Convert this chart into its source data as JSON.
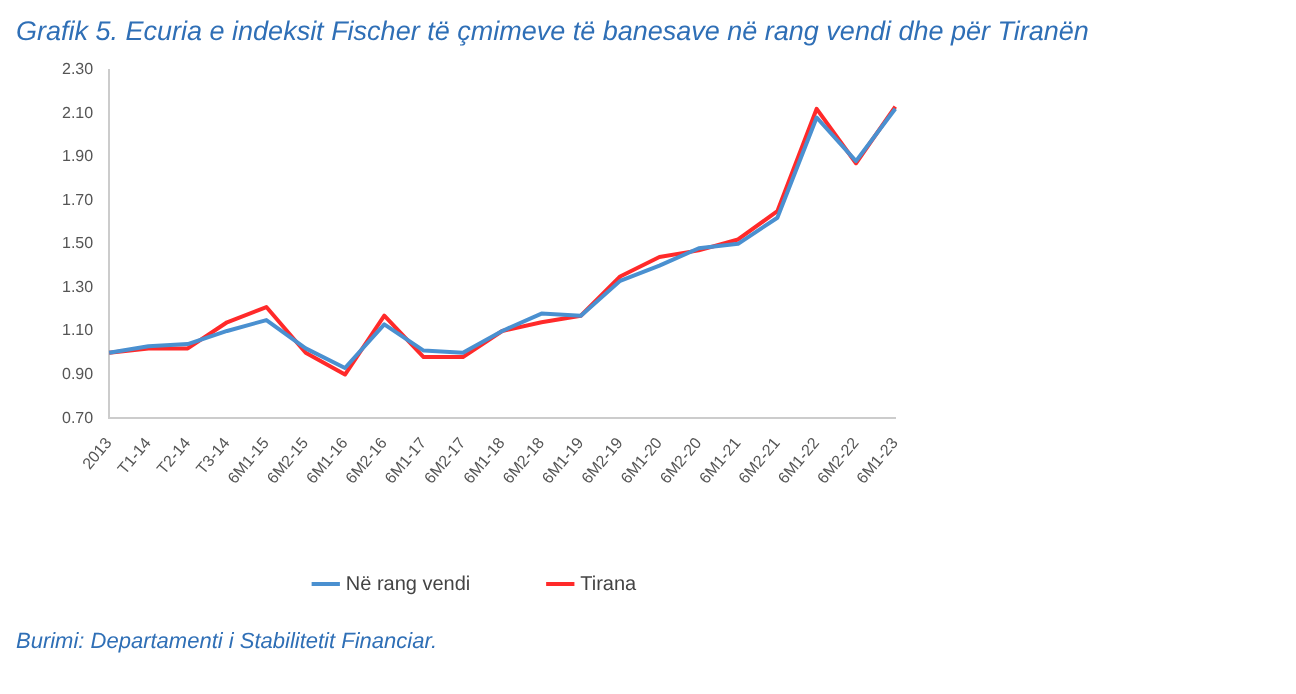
{
  "chart_data": {
    "type": "line",
    "title": "Grafik 5. Ecuria e indeksit Fischer të çmimeve të banesave në rang vendi dhe për Tiranën",
    "categories": [
      "2013",
      "T1-14",
      "T2-14",
      "T3-14",
      "6M1-15",
      "6M2-15",
      "6M1-16",
      "6M2-16",
      "6M1-17",
      "6M2-17",
      "6M1-18",
      "6M2-18",
      "6M1-19",
      "6M2-19",
      "6M1-20",
      "6M2-20",
      "6M1-21",
      "6M2-21",
      "6M1-22",
      "6M2-22",
      "6M1-23"
    ],
    "series": [
      {
        "name": "Në rang vendi",
        "color": "#4a90d0",
        "values": [
          1.0,
          1.03,
          1.04,
          1.1,
          1.15,
          1.02,
          0.93,
          1.13,
          1.01,
          1.0,
          1.1,
          1.18,
          1.17,
          1.33,
          1.4,
          1.48,
          1.5,
          1.62,
          2.08,
          1.88,
          2.12
        ]
      },
      {
        "name": "Tirana",
        "color": "#ff2a2a",
        "values": [
          1.0,
          1.02,
          1.02,
          1.14,
          1.21,
          1.0,
          0.9,
          1.17,
          0.98,
          0.98,
          1.1,
          1.14,
          1.17,
          1.35,
          1.44,
          1.47,
          1.52,
          1.65,
          2.12,
          1.87,
          2.13
        ]
      }
    ],
    "ylim": [
      0.7,
      2.3
    ],
    "yticks": [
      {
        "value": 0.7,
        "label": "0.70"
      },
      {
        "value": 0.9,
        "label": "0.90"
      },
      {
        "value": 1.1,
        "label": "1.10"
      },
      {
        "value": 1.3,
        "label": "1.30"
      },
      {
        "value": 1.5,
        "label": "1.50"
      },
      {
        "value": 1.7,
        "label": "1.70"
      },
      {
        "value": 1.9,
        "label": "1.90"
      },
      {
        "value": 2.1,
        "label": "2.10"
      },
      {
        "value": 2.3,
        "label": "2.30"
      }
    ],
    "grid": false,
    "legend": "bottom",
    "marker": "none",
    "line_style": "solid",
    "annotations": [
      "Burimi: Departamenti i Stabilitetit Financiar."
    ]
  }
}
